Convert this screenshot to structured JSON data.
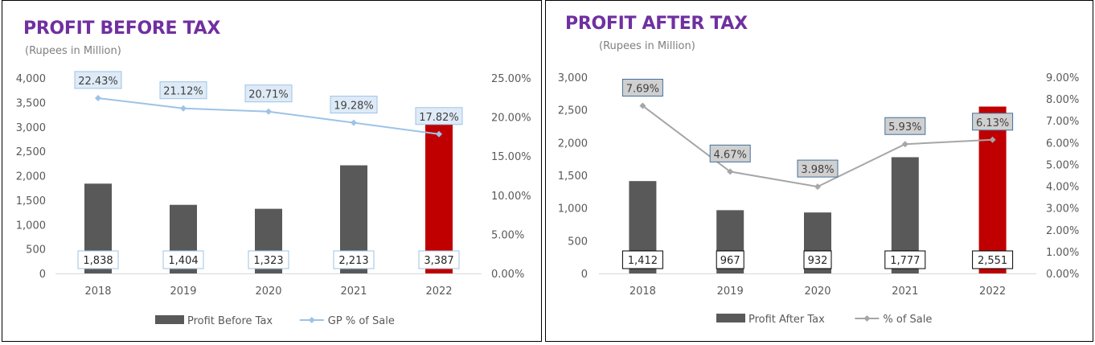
{
  "colors": {
    "title": "#7030a0",
    "bar": "#595959",
    "highlight_bar": "#c00000",
    "line_left": "#9dc3e6",
    "line_right": "#a6a6a6",
    "label_fill_left": "#deebf7",
    "label_fill_right": "#d0d0d0"
  },
  "chart_data": [
    {
      "type": "bar",
      "title": "PROFIT BEFORE TAX",
      "subtitle": "(Rupees in Million)",
      "categories": [
        "2018",
        "2019",
        "2020",
        "2021",
        "2022"
      ],
      "ylim": [
        0,
        4000
      ],
      "y_ticks": [
        "0",
        "500",
        "1,000",
        "1,500",
        "2,000",
        "2,500",
        "3,000",
        "3,500",
        "4,000"
      ],
      "y2lim": [
        0,
        25
      ],
      "y2_ticks": [
        "0.00%",
        "5.00%",
        "10.00%",
        "15.00%",
        "20.00%",
        "25.00%"
      ],
      "series": [
        {
          "name": "Profit Before Tax",
          "type": "bar",
          "axis": "primary",
          "values": [
            1838,
            1404,
            1323,
            2213,
            3387
          ],
          "labels": [
            "1,838",
            "1,404",
            "1,323",
            "2,213",
            "3,387"
          ],
          "highlight_index": 4
        },
        {
          "name": "GP % of Sale",
          "type": "line",
          "axis": "secondary",
          "values": [
            22.43,
            21.12,
            20.71,
            19.28,
            17.82
          ],
          "labels": [
            "22.43%",
            "21.12%",
            "20.71%",
            "19.28%",
            "17.82%"
          ]
        }
      ],
      "grid": false,
      "legend": "bottom"
    },
    {
      "type": "bar",
      "title": "PROFIT AFTER TAX",
      "subtitle": "(Rupees in Million)",
      "categories": [
        "2018",
        "2019",
        "2020",
        "2021",
        "2022"
      ],
      "ylim": [
        0,
        3000
      ],
      "y_ticks": [
        "0",
        "500",
        "1,000",
        "1,500",
        "2,000",
        "2,500",
        "3,000"
      ],
      "y2lim": [
        0,
        9
      ],
      "y2_ticks": [
        "0.00%",
        "1.00%",
        "2.00%",
        "3.00%",
        "4.00%",
        "5.00%",
        "6.00%",
        "7.00%",
        "8.00%",
        "9.00%"
      ],
      "series": [
        {
          "name": "Profit After Tax",
          "type": "bar",
          "axis": "primary",
          "values": [
            1412,
            967,
            932,
            1777,
            2551
          ],
          "labels": [
            "1,412",
            "967",
            "932",
            "1,777",
            "2,551"
          ],
          "highlight_index": 4
        },
        {
          "name": "% of Sale",
          "type": "line",
          "axis": "secondary",
          "values": [
            7.69,
            4.67,
            3.98,
            5.93,
            6.13
          ],
          "labels": [
            "7.69%",
            "4.67%",
            "3.98%",
            "5.93%",
            "6.13%"
          ]
        }
      ],
      "grid": false,
      "legend": "bottom"
    }
  ]
}
